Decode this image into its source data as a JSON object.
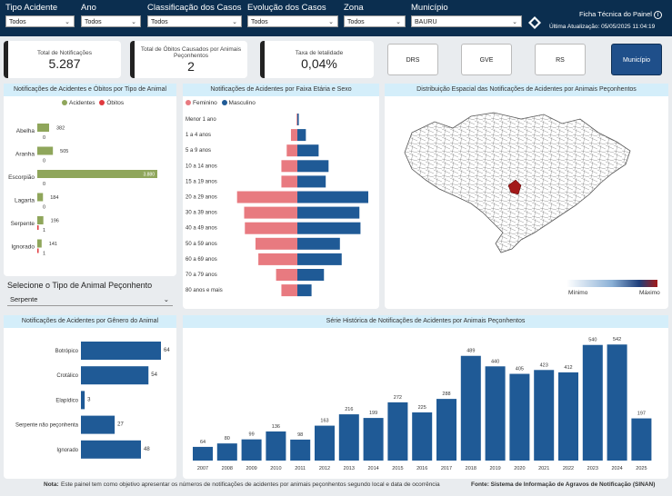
{
  "filters": [
    {
      "label": "Tipo Acidente",
      "value": "Todos"
    },
    {
      "label": "Ano",
      "value": "Todos"
    },
    {
      "label": "Classificação dos Casos",
      "value": "Todos"
    },
    {
      "label": "Evolução dos Casos",
      "value": "Todos"
    },
    {
      "label": "Zona",
      "value": "Todos"
    },
    {
      "label": "Município",
      "value": "BAURU"
    }
  ],
  "header": {
    "ficha_label": "Ficha Técnica do Painel",
    "last_update": "Última Atualização: 05/05/2025 11:04:19"
  },
  "kpis": [
    {
      "title": "Total de Notificações",
      "value": "5.287",
      "color": "#8fa65b"
    },
    {
      "title": "Total de Óbitos Causados por Animais Peçonhentos",
      "value": "2",
      "color": "#e0393e"
    },
    {
      "title": "Taxa de letalidade",
      "value": "0,04%",
      "color": "#f08c1e"
    }
  ],
  "nav": [
    {
      "label": "DRS",
      "active": false
    },
    {
      "label": "GVE",
      "active": false
    },
    {
      "label": "RS",
      "active": false
    },
    {
      "label": "Município",
      "active": true
    }
  ],
  "animal_panel": {
    "title": "Notificações de Acidentes e Óbitos por Tipo de Animal",
    "legend": [
      "Acidentes",
      "Óbitos"
    ],
    "colors": {
      "acidentes": "#8fa65b",
      "obitos": "#e0393e"
    },
    "rows": [
      {
        "label": "Abelha",
        "acidentes": 382,
        "obitos": 0
      },
      {
        "label": "Aranha",
        "acidentes": 505,
        "obitos": 0
      },
      {
        "label": "Escorpião",
        "acidentes": 3880,
        "acidentes_label": "3.880",
        "obitos": 0
      },
      {
        "label": "Lagarta",
        "acidentes": 184,
        "obitos": 0
      },
      {
        "label": "Serpente",
        "acidentes": 196,
        "obitos": 1
      },
      {
        "label": "Ignorado",
        "acidentes": 141,
        "obitos": 1
      }
    ],
    "max": 3880
  },
  "select_animal": {
    "label": "Selecione o Tipo de Animal Peçonhento",
    "value": "Serpente"
  },
  "pyramid": {
    "title": "Notificações de Acidentes por Faixa Etária e Sexo",
    "legend": [
      "Feminino",
      "Masculino"
    ],
    "colors": {
      "feminino": "#e87a80",
      "masculino": "#1f5a96"
    },
    "rows": [
      {
        "label": "Menor 1 ano",
        "f": 2,
        "m": 4
      },
      {
        "label": "1 a 4 anos",
        "f": 18,
        "m": 24
      },
      {
        "label": "5 a 9 anos",
        "f": 30,
        "m": 60
      },
      {
        "label": "10 a 14 anos",
        "f": 45,
        "m": 88
      },
      {
        "label": "15 a 19 anos",
        "f": 45,
        "m": 80
      },
      {
        "label": "20 a 29 anos",
        "f": 170,
        "m": 200
      },
      {
        "label": "30 a 39 anos",
        "f": 150,
        "m": 175
      },
      {
        "label": "40 a 49 anos",
        "f": 148,
        "m": 178
      },
      {
        "label": "50 a 59 anos",
        "f": 118,
        "m": 120
      },
      {
        "label": "60 a 69 anos",
        "f": 110,
        "m": 125
      },
      {
        "label": "70 a 79 anos",
        "f": 60,
        "m": 75
      },
      {
        "label": "80 anos e mais",
        "f": 45,
        "m": 40
      }
    ],
    "max": 200
  },
  "map": {
    "title": "Distribuição Espacial das Notificações de Acidentes por Animais Peçonhentos",
    "min_label": "Mínimo",
    "max_label": "Máximo"
  },
  "genus": {
    "title": "Notificações de Acidentes por Gênero do Animal",
    "color": "#1f5a96",
    "rows": [
      {
        "label": "Botrópico",
        "value": 64
      },
      {
        "label": "Crotálico",
        "value": 54
      },
      {
        "label": "Elapídico",
        "value": 3
      },
      {
        "label": "Serpente não peçonhenta",
        "value": 27
      },
      {
        "label": "Ignorado",
        "value": 48
      }
    ],
    "max": 64
  },
  "series": {
    "title": "Série Histórica de Notificações de Acidentes por Animais Peçonhentos",
    "color": "#1f5a96",
    "years": [
      "2007",
      "2008",
      "2009",
      "2010",
      "2011",
      "2012",
      "2013",
      "2014",
      "2015",
      "2016",
      "2017",
      "2018",
      "2019",
      "2020",
      "2021",
      "2022",
      "2023",
      "2024",
      "2025"
    ],
    "values": [
      64,
      80,
      99,
      136,
      98,
      163,
      216,
      199,
      272,
      225,
      288,
      489,
      440,
      405,
      423,
      412,
      540,
      542,
      197
    ],
    "max": 560
  },
  "footer": {
    "note_label": "Nota:",
    "note": "Este painel tem como objetivo apresentar os números de notificações de acidentes por animais peçonhentos segundo local e data de ocorrência",
    "source": "Fonte: Sistema de Informação de Agravos de Notificação (SINAN)"
  }
}
